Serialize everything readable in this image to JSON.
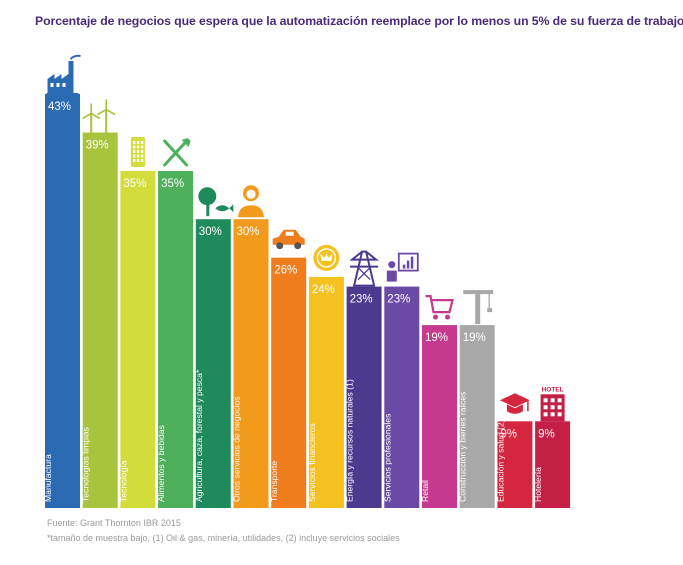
{
  "chart_data": {
    "type": "bar",
    "title": "Porcentaje de negocios que espera que la automatización reemplace por lo menos un 5% de su fuerza de trabajo",
    "xlabel": "",
    "ylabel": "",
    "ylim": [
      0,
      43
    ],
    "categories": [
      "Manufactura",
      "Tecnologías limpias",
      "Tecnología",
      "Alimentos y bebidas",
      "Agricultura, caza, forestal y pesca*",
      "Otros servicios de negocios",
      "Transporte",
      "Servicios financieros",
      "Energía y recursos naturales (1)",
      "Servicios profesionales",
      "Retail",
      "Construcción y bienes raíces",
      "Educación y salud (2)",
      "Hotelería"
    ],
    "values": [
      43,
      39,
      35,
      35,
      30,
      30,
      26,
      24,
      23,
      23,
      19,
      19,
      9,
      9
    ],
    "value_labels": [
      "43%",
      "39%",
      "35%",
      "35%",
      "30%",
      "30%",
      "26%",
      "24%",
      "23%",
      "23%",
      "19%",
      "19%",
      "9%",
      "9%"
    ],
    "colors": [
      "#2a6ab3",
      "#a8c43c",
      "#d2dc3a",
      "#4eb05a",
      "#1f8a5c",
      "#f29a1c",
      "#ef7d1e",
      "#f4c11f",
      "#4b3a8e",
      "#6b4aa5",
      "#c53a8f",
      "#a8a8a8",
      "#d4263f",
      "#c41f45"
    ],
    "icons": [
      "factory-icon",
      "wind-turbine-icon",
      "phone-icon",
      "fork-knife-icon",
      "tree-fish-icon",
      "person-icon",
      "car-icon",
      "coin-icon",
      "power-tower-icon",
      "presenter-icon",
      "cart-icon",
      "crane-icon",
      "graduation-cap-icon",
      "hotel-icon"
    ],
    "hotel_sign": "HOTEL"
  },
  "footer": {
    "source": "Fuente: Grant Thornton IBR 2015",
    "note": "*tamaño de muestra bajo, (1) Oil & gas, minería, utilidades, (2) incluye servicios sociales"
  }
}
